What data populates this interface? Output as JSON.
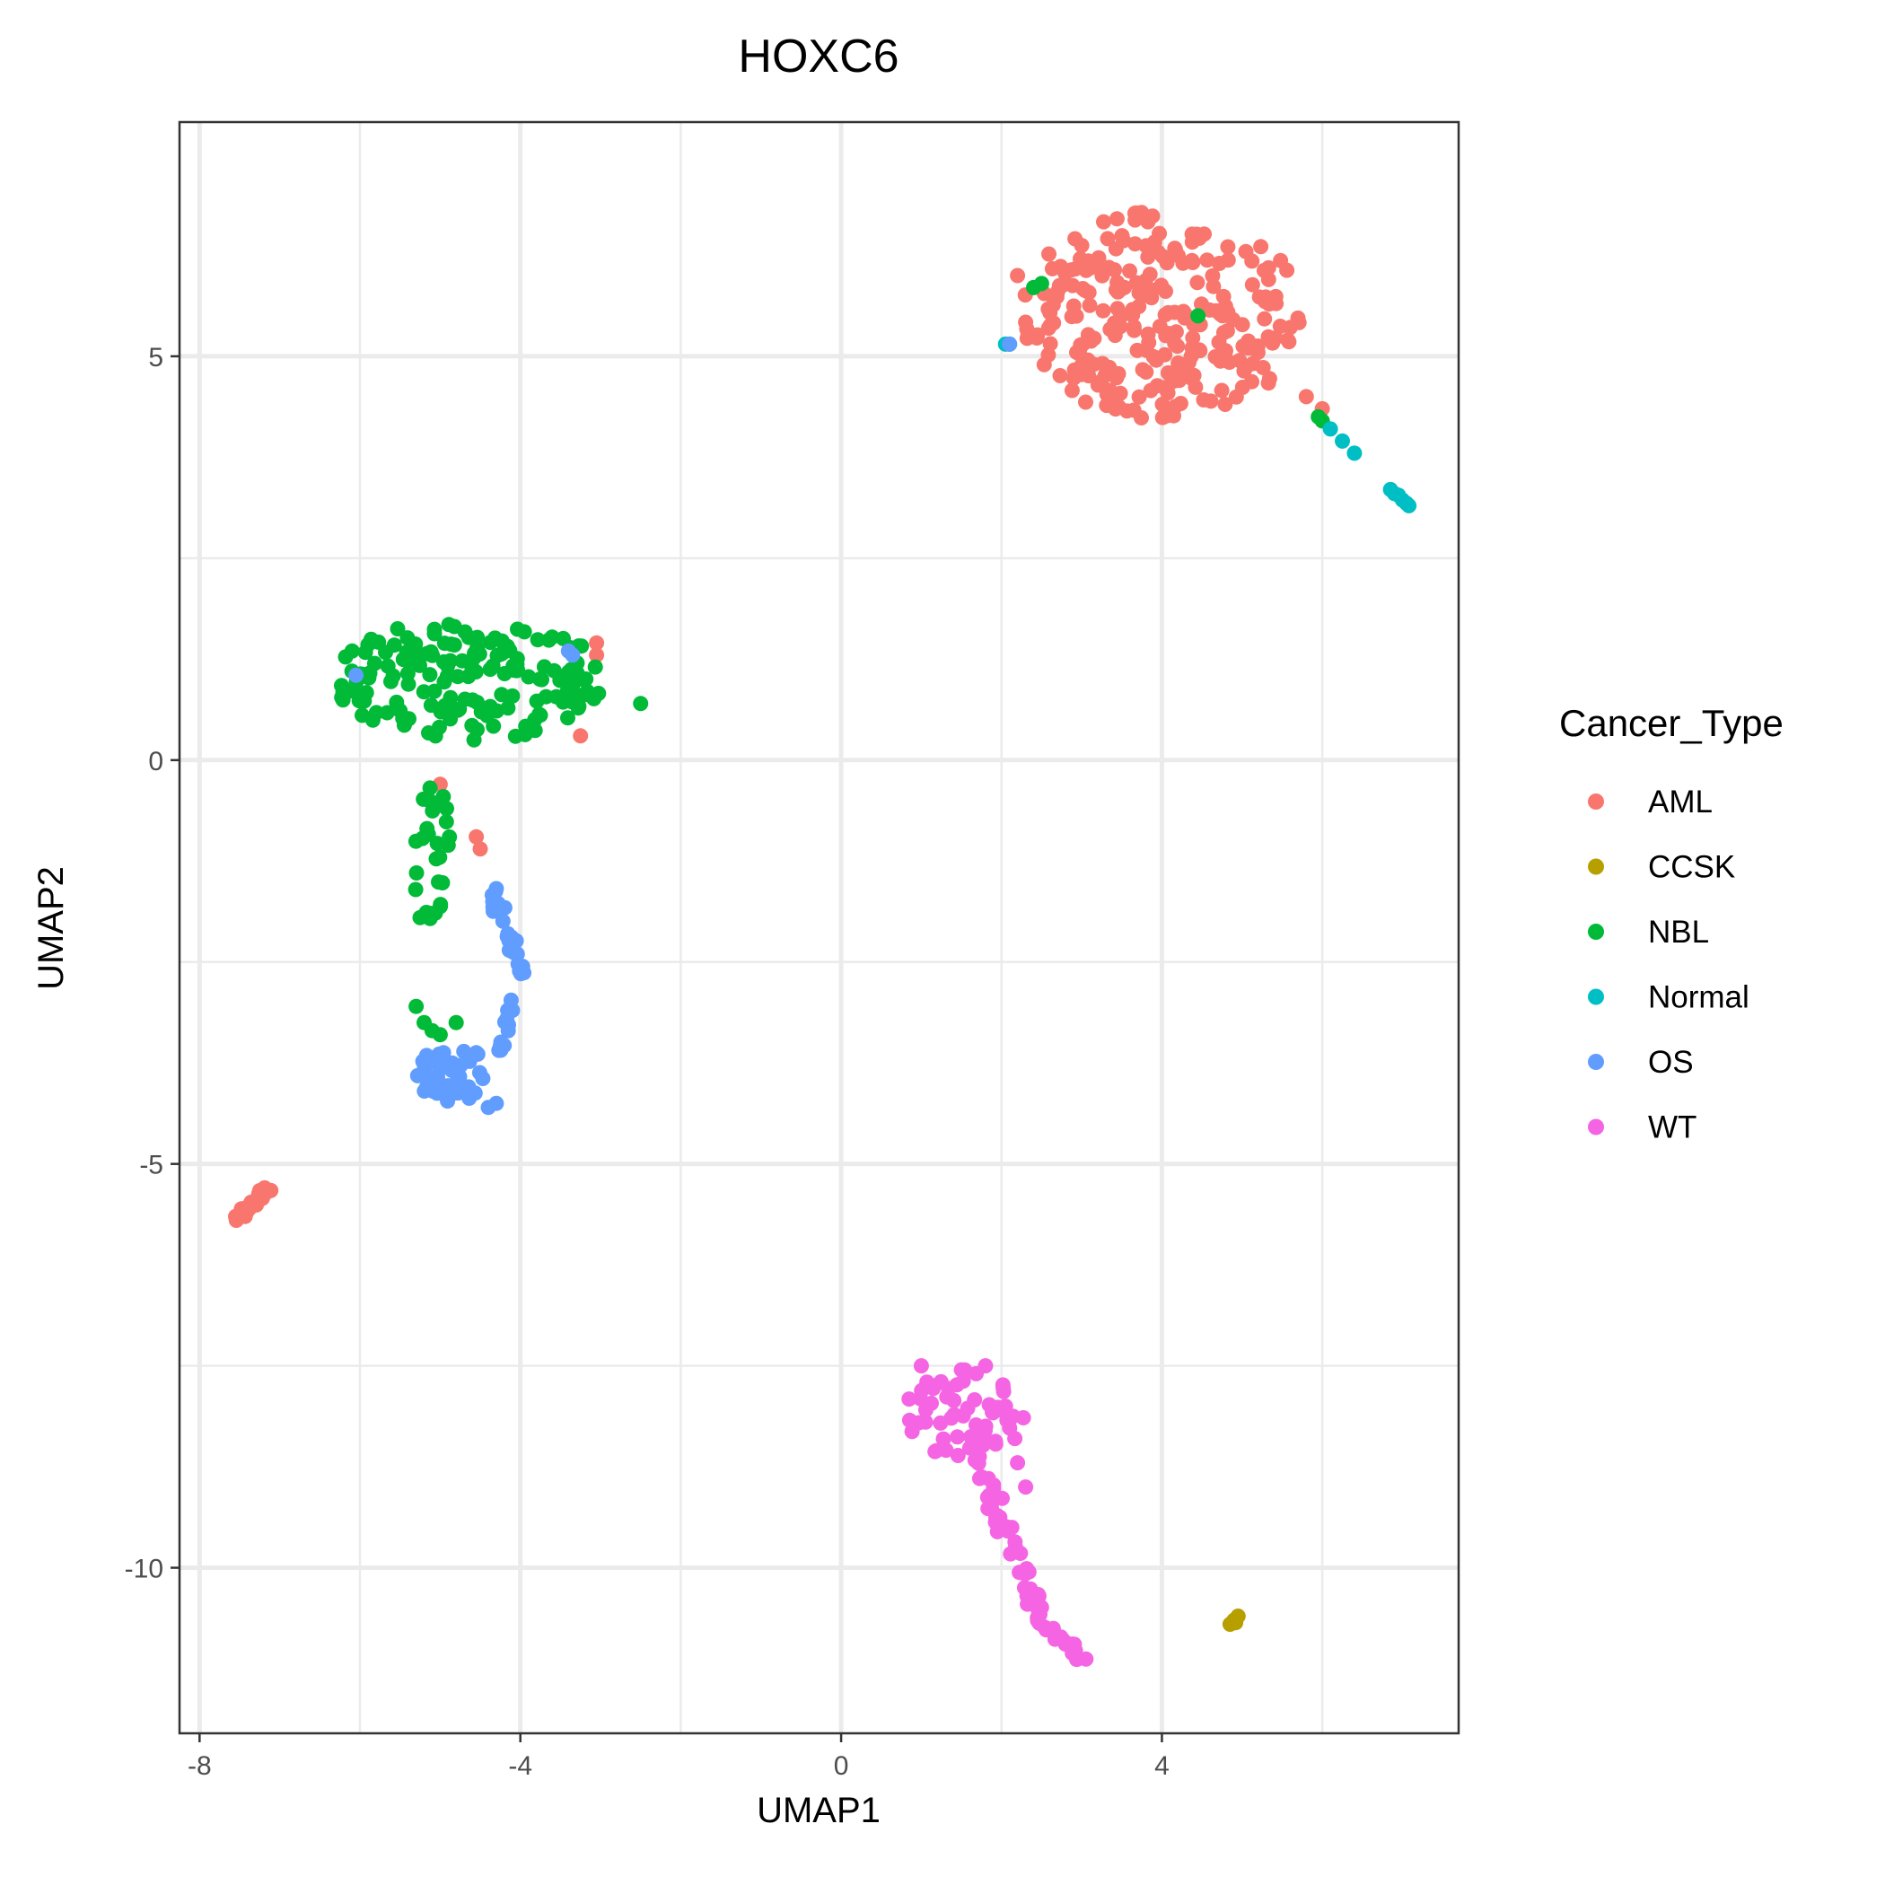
{
  "chart_data": {
    "type": "scatter",
    "title": "HOXC6",
    "xlabel": "UMAP1",
    "ylabel": "UMAP2",
    "xlim": [
      -8.25,
      7.7
    ],
    "ylim": [
      -12.05,
      7.9
    ],
    "x_major_ticks": [
      -8,
      -4,
      0,
      4
    ],
    "x_minor_ticks": [
      -6,
      -2,
      2,
      6
    ],
    "y_major_ticks": [
      -10,
      -5,
      0,
      5
    ],
    "y_minor_ticks": [
      -7.5,
      -2.5,
      2.5
    ],
    "x_tick_labels": [
      "-8",
      "-4",
      "0",
      "4"
    ],
    "y_tick_labels": [
      "-10",
      "-5",
      "0",
      "5"
    ],
    "grid": true,
    "legend": {
      "title": "Cancer_Type",
      "placement": "right"
    },
    "series": [
      {
        "name": "AML",
        "color": "#F8766D",
        "clusters": [
          {
            "cx": 4.0,
            "cy": 5.5,
            "rx": 1.75,
            "ry": 1.3,
            "n": 260,
            "seed": 11,
            "shape": "ellipse"
          },
          {
            "cx": -7.35,
            "cy": -5.5,
            "rx": 0.2,
            "ry": 0.15,
            "n": 40,
            "seed": 12,
            "shape": "line",
            "x0": -7.55,
            "y0": -5.7,
            "x1": -7.15,
            "y1": -5.3
          }
        ],
        "points": [
          [
            -3.05,
            1.45
          ],
          [
            -3.05,
            1.3
          ],
          [
            -3.25,
            0.3
          ],
          [
            -5.0,
            -0.3
          ],
          [
            -4.55,
            -0.95
          ],
          [
            -4.5,
            -1.1
          ],
          [
            6.0,
            4.35
          ],
          [
            5.8,
            4.5
          ],
          [
            3.15,
            4.9
          ],
          [
            2.2,
            6.0
          ]
        ]
      },
      {
        "name": "CCSK",
        "color": "#B79F00",
        "clusters": [],
        "points": [
          [
            4.9,
            -10.65
          ],
          [
            4.95,
            -10.6
          ],
          [
            4.85,
            -10.7
          ],
          [
            4.92,
            -10.68
          ],
          [
            2.55,
            -10.75
          ]
        ]
      },
      {
        "name": "NBL",
        "color": "#00BA38",
        "clusters": [
          {
            "cx": -4.6,
            "cy": 1.0,
            "rx": 1.75,
            "ry": 0.75,
            "n": 170,
            "seed": 21,
            "shape": "ellipse"
          },
          {
            "cx": -5.1,
            "cy": -1.1,
            "rx": 0.25,
            "ry": 0.9,
            "n": 28,
            "seed": 22,
            "shape": "ellipse"
          }
        ],
        "points": [
          [
            -5.3,
            -3.05
          ],
          [
            -5.2,
            -3.25
          ],
          [
            -5.1,
            -3.35
          ],
          [
            -5.0,
            -3.4
          ],
          [
            -4.8,
            -3.25
          ],
          [
            -5.25,
            -1.95
          ],
          [
            2.5,
            5.9
          ],
          [
            2.4,
            5.85
          ],
          [
            4.45,
            5.5
          ],
          [
            6.0,
            4.2
          ],
          [
            5.95,
            4.25
          ],
          [
            2.1,
            5.15
          ],
          [
            -2.5,
            0.7
          ]
        ]
      },
      {
        "name": "Normal",
        "color": "#00BFC4",
        "clusters": [],
        "points": [
          [
            6.1,
            4.1
          ],
          [
            6.25,
            3.95
          ],
          [
            6.4,
            3.8
          ],
          [
            6.85,
            3.35
          ],
          [
            6.9,
            3.3
          ],
          [
            6.95,
            3.28
          ],
          [
            7.0,
            3.22
          ],
          [
            7.05,
            3.18
          ],
          [
            7.08,
            3.15
          ],
          [
            2.05,
            5.15
          ]
        ]
      },
      {
        "name": "OS",
        "color": "#619CFF",
        "clusters": [
          {
            "cx": -4.35,
            "cy": -2.1,
            "rx": 0.2,
            "ry": 0.55,
            "n": 22,
            "seed": 31,
            "shape": "line",
            "x0": -4.4,
            "y0": -1.5,
            "x1": -3.95,
            "y1": -2.65
          },
          {
            "cx": -4.85,
            "cy": -3.9,
            "rx": 0.5,
            "ry": 0.35,
            "n": 45,
            "seed": 32,
            "shape": "ellipse"
          },
          {
            "cx": -4.2,
            "cy": -3.3,
            "rx": 0.15,
            "ry": 0.35,
            "n": 14,
            "seed": 33,
            "shape": "line",
            "x0": -4.1,
            "y0": -2.9,
            "x1": -4.25,
            "y1": -3.65
          }
        ],
        "points": [
          [
            -6.05,
            1.05
          ],
          [
            -3.35,
            1.3
          ],
          [
            -3.4,
            1.35
          ],
          [
            2.1,
            5.15
          ],
          [
            -4.4,
            -4.3
          ],
          [
            -4.3,
            -4.25
          ]
        ]
      },
      {
        "name": "WT",
        "color": "#F564E3",
        "clusters": [
          {
            "cx": 1.55,
            "cy": -8.1,
            "rx": 0.75,
            "ry": 0.55,
            "n": 60,
            "seed": 41,
            "shape": "ellipse"
          },
          {
            "cx": 2.1,
            "cy": -9.6,
            "rx": 0.25,
            "ry": 1.0,
            "n": 45,
            "seed": 42,
            "shape": "line",
            "x0": 1.7,
            "y0": -8.7,
            "x1": 2.45,
            "y1": -10.5
          },
          {
            "cx": 2.7,
            "cy": -10.9,
            "rx": 0.3,
            "ry": 0.2,
            "n": 16,
            "seed": 43,
            "shape": "line",
            "x0": 2.45,
            "y0": -10.6,
            "x1": 3.1,
            "y1": -11.2
          }
        ],
        "points": [
          [
            1.0,
            -7.5
          ],
          [
            1.5,
            -7.55
          ],
          [
            1.8,
            -7.5
          ],
          [
            2.05,
            -8.0
          ],
          [
            2.2,
            -8.7
          ],
          [
            2.3,
            -9.0
          ]
        ]
      }
    ]
  }
}
